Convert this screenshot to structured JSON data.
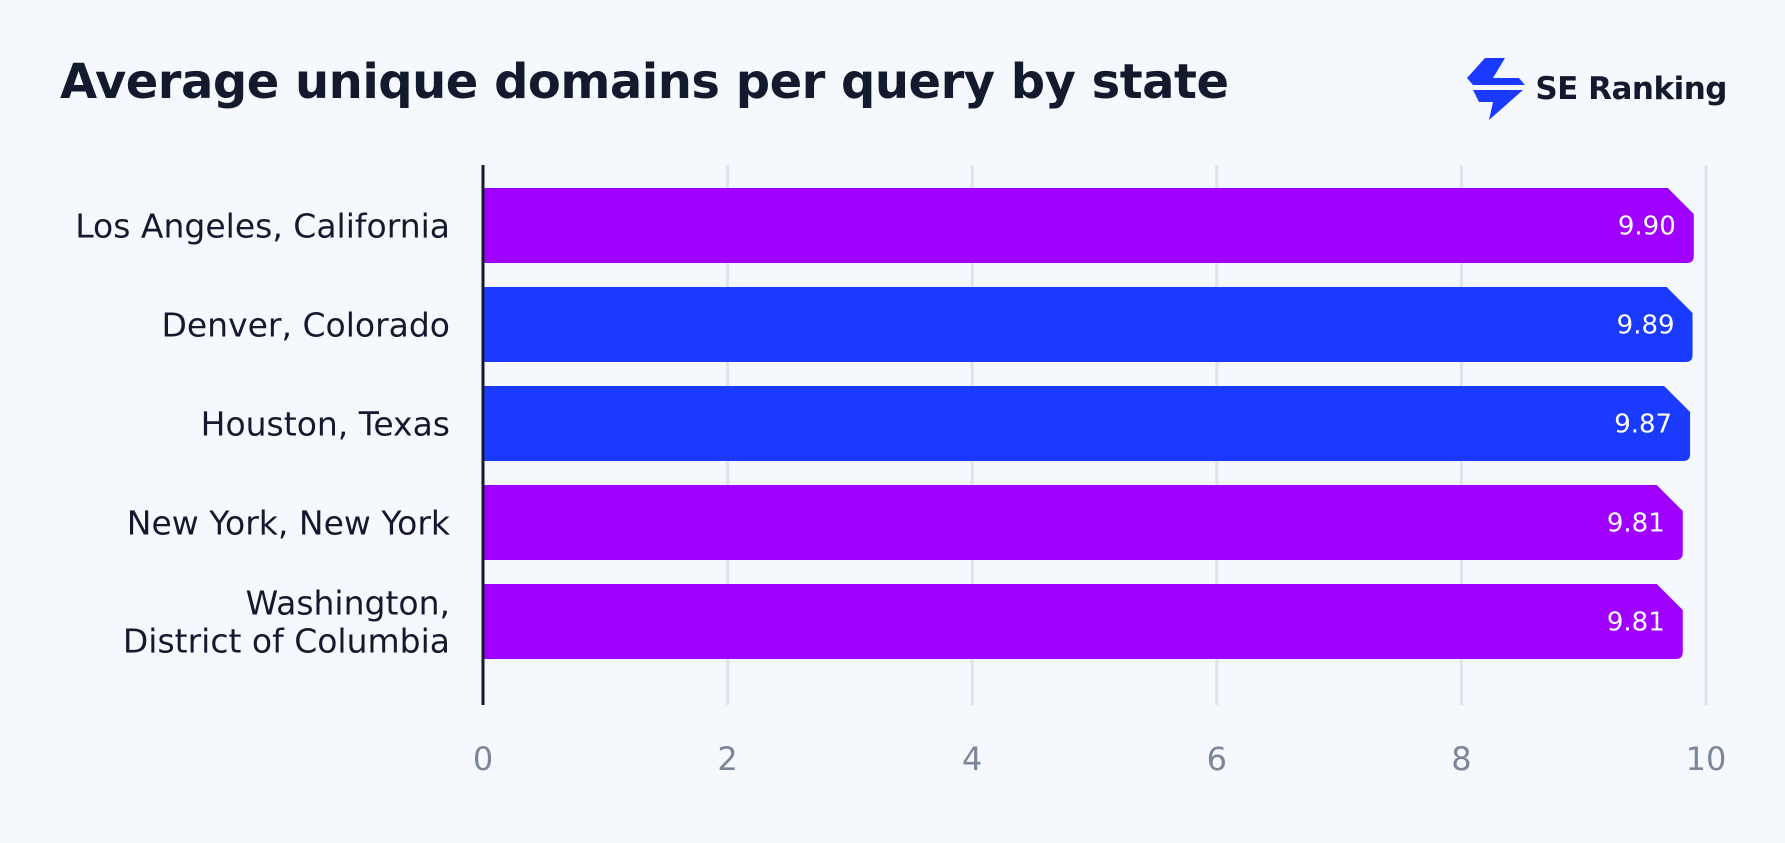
{
  "brand": {
    "name": "SE Ranking",
    "icon": "se-ranking-bolt-logo",
    "color": "#1a3bff"
  },
  "colors": {
    "background": "#f5f8fc",
    "purple": "#a000ff",
    "blue": "#1a3bff",
    "grid": "#dde3ef",
    "axis": "#141a2e",
    "tick": "#7b8699"
  },
  "chart_data": {
    "type": "bar",
    "orientation": "horizontal",
    "title": "Average unique domains per query by state",
    "xlabel": "",
    "ylabel": "",
    "categories": [
      [
        "Los Angeles, California"
      ],
      [
        "Denver, Colorado"
      ],
      [
        "Houston, Texas"
      ],
      [
        "New York, New York"
      ],
      [
        "Washington,",
        "District of Columbia"
      ]
    ],
    "values": [
      9.9,
      9.89,
      9.87,
      9.81,
      9.81
    ],
    "value_labels": [
      "9.90",
      "9.89",
      "9.87",
      "9.81",
      "9.81"
    ],
    "bar_colors": [
      "#a000ff",
      "#1a3bff",
      "#1a3bff",
      "#a000ff",
      "#a000ff"
    ],
    "xlim": [
      0,
      10
    ],
    "xticks": [
      0,
      2,
      4,
      6,
      8,
      10
    ],
    "grid": true,
    "legend": false
  }
}
